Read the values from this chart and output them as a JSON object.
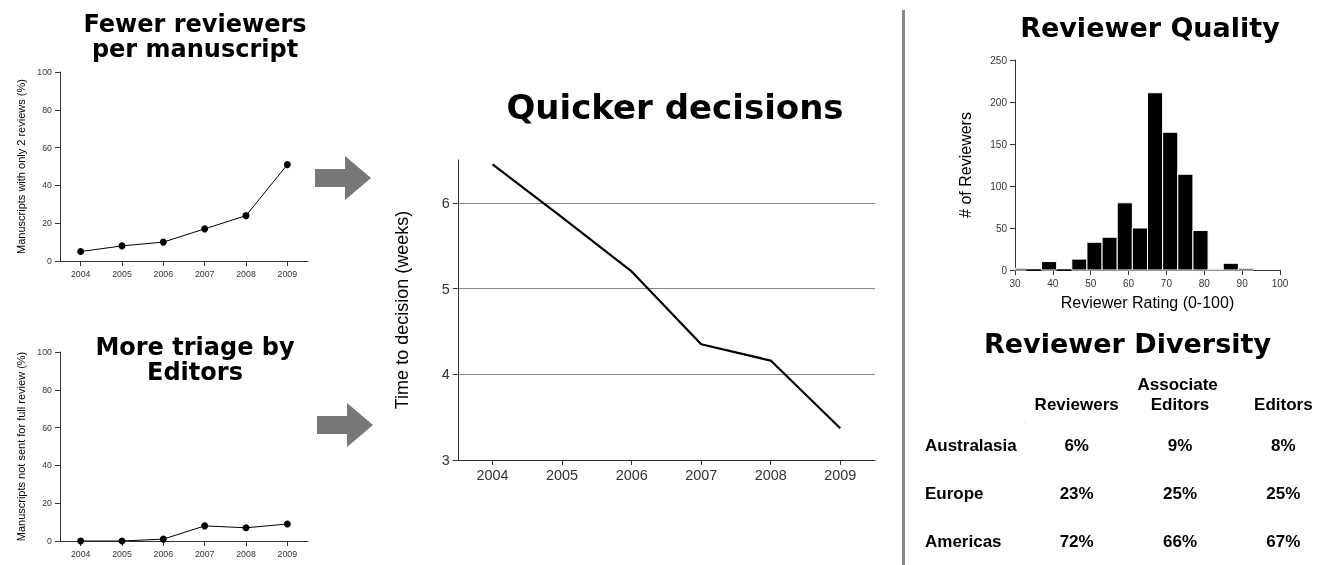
{
  "chart_data": [
    {
      "type": "line",
      "title": "Fewer reviewers per manuscript",
      "ylabel": "Manuscripts with only 2 reviews (%)",
      "categories": [
        "2004",
        "2005",
        "2006",
        "2007",
        "2008",
        "2009"
      ],
      "series": [
        {
          "color": "#000000",
          "values": [
            5,
            8,
            10,
            17,
            24,
            51
          ]
        }
      ],
      "ylim": [
        0,
        100
      ],
      "yticks": [
        0,
        20,
        40,
        60,
        80,
        100
      ],
      "marker": "circle",
      "grid": false
    },
    {
      "type": "line",
      "title": "More triage by Editors",
      "ylabel": "Manuscripts not sent for full review (%)",
      "categories": [
        "2004",
        "2005",
        "2006",
        "2007",
        "2008",
        "2009"
      ],
      "series": [
        {
          "color": "#000000",
          "values": [
            0,
            0,
            1,
            8,
            7,
            9
          ]
        }
      ],
      "ylim": [
        0,
        100
      ],
      "yticks": [
        0,
        20,
        40,
        60,
        80,
        100
      ],
      "marker": "circle",
      "grid": false
    },
    {
      "type": "line",
      "title": "Quicker decisions",
      "ylabel": "Time to decision (weeks)",
      "categories": [
        "2004",
        "2005",
        "2006",
        "2007",
        "2008",
        "2009"
      ],
      "series": [
        {
          "color": "#000000",
          "values": [
            6.45,
            5.83,
            5.2,
            4.35,
            4.16,
            3.37
          ]
        }
      ],
      "ylim": [
        3,
        6.5
      ],
      "yticks": [
        3,
        4,
        5,
        6
      ],
      "marker": "none",
      "grid": "y"
    },
    {
      "type": "histogram",
      "title": "Reviewer Quality",
      "xlabel": "Reviewer Rating (0-100)",
      "ylabel": "# of Reviewers",
      "color": "#000000",
      "bins": [
        30,
        33,
        37,
        41,
        45,
        49,
        53,
        57,
        61,
        65,
        69,
        73,
        77,
        81,
        85,
        89,
        93
      ],
      "values": [
        2,
        0,
        10,
        0,
        13,
        33,
        39,
        80,
        50,
        211,
        164,
        114,
        47,
        1,
        8,
        2
      ],
      "xlim": [
        30,
        100
      ],
      "xticks": [
        30,
        40,
        50,
        60,
        70,
        80,
        90,
        100
      ],
      "ylim": [
        0,
        250
      ],
      "yticks": [
        0,
        50,
        100,
        150,
        200,
        250
      ],
      "grid": false
    },
    {
      "type": "heatmap",
      "title": "Reviewer Diversity",
      "categories": [
        "Reviewers",
        "Associate Editors",
        "Editors"
      ],
      "y_categories": [
        "Australasia",
        "Europe",
        "Americas"
      ],
      "cells": [
        [
          6,
          9,
          8
        ],
        [
          23,
          25,
          25
        ],
        [
          72,
          66,
          67
        ]
      ],
      "cell_labels": [
        [
          "6%",
          "9%",
          "8%"
        ],
        [
          "23%",
          "25%",
          "25%"
        ],
        [
          "72%",
          "66%",
          "67%"
        ]
      ]
    }
  ]
}
